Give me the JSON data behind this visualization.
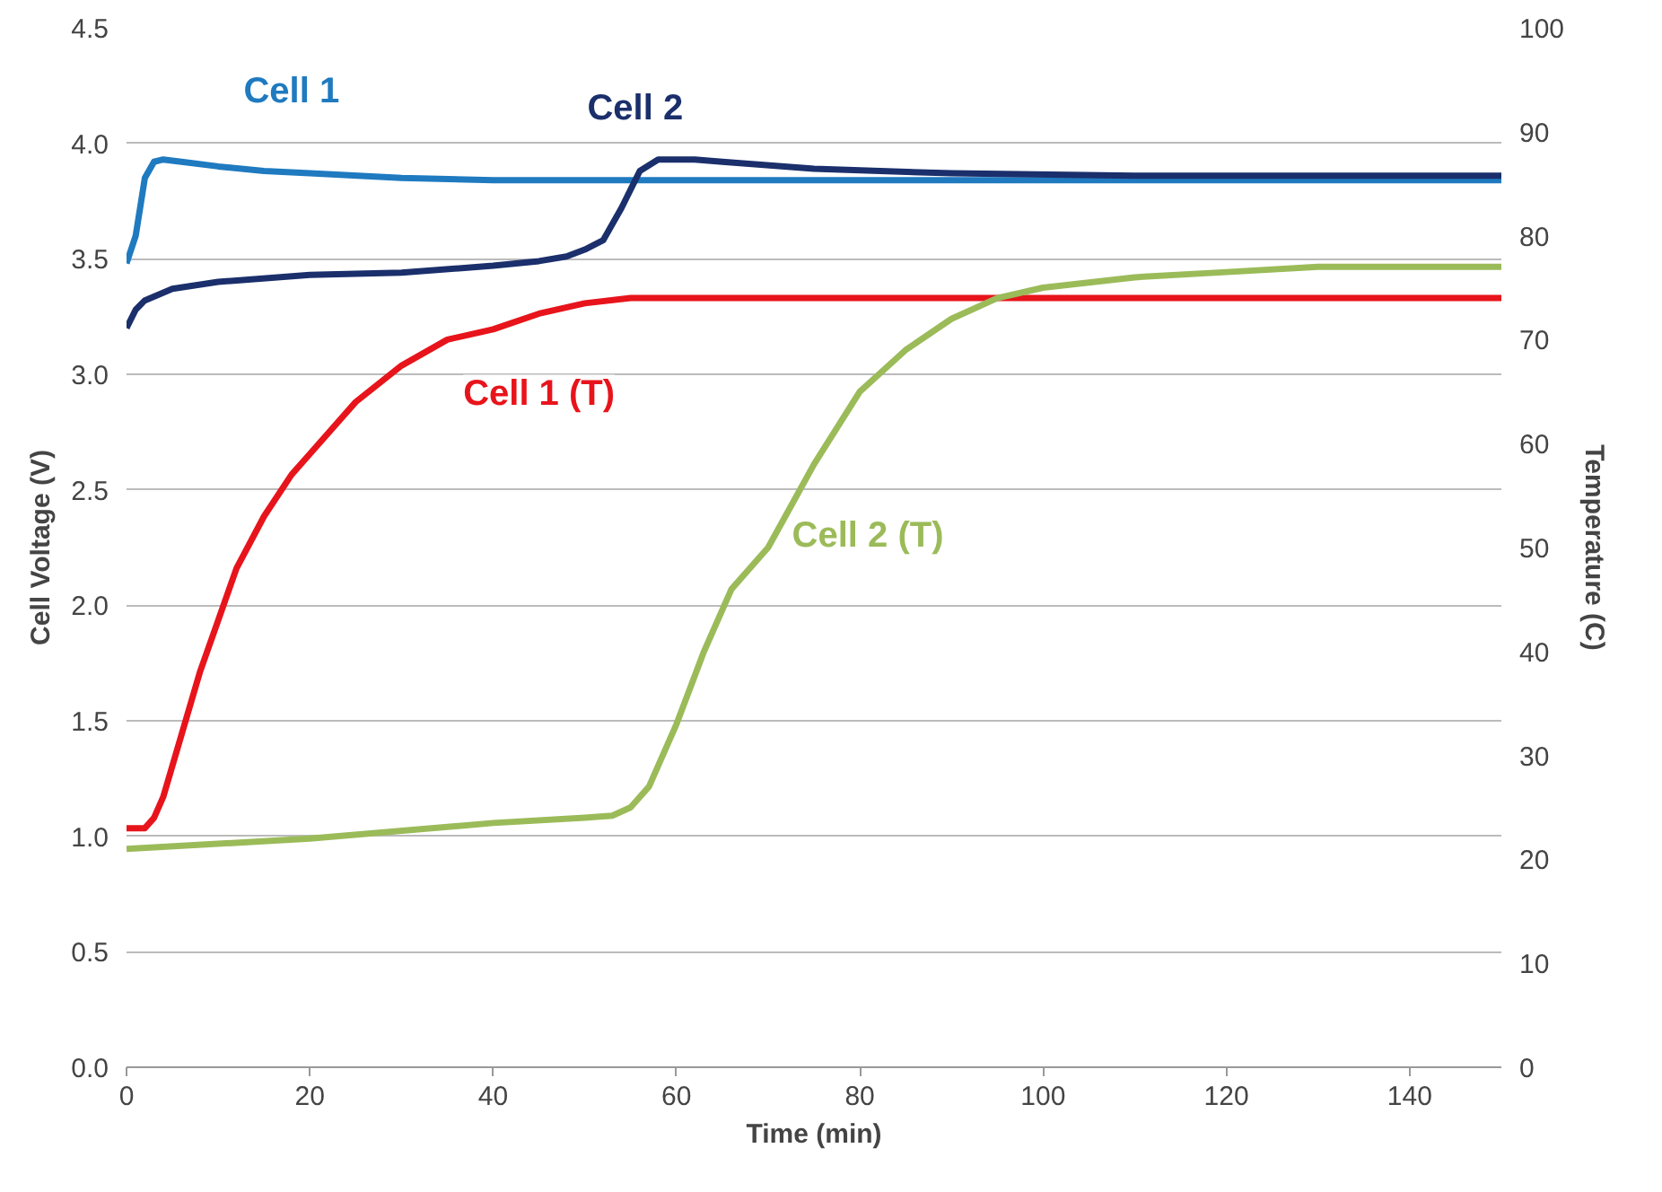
{
  "chart_data": {
    "type": "line",
    "xlabel": "Time (min)",
    "ylabel": "Cell Voltage (V)",
    "y2label": "Temperature (C)",
    "xlim": [
      0,
      150
    ],
    "xticks": [
      0,
      20,
      40,
      60,
      80,
      100,
      120,
      140
    ],
    "ylim": [
      0,
      4.5
    ],
    "yticks": [
      {
        "value": 0,
        "label": "0.0"
      },
      0.5,
      {
        "value": 1,
        "label": "1.0"
      },
      1.5,
      {
        "value": 2,
        "label": "2.0"
      },
      2.5,
      {
        "value": 3,
        "label": "3.0"
      },
      3.5,
      {
        "value": 4,
        "label": "4.0"
      },
      4.5
    ],
    "y2lim": [
      0,
      100
    ],
    "y2ticks": [
      0,
      10,
      20,
      30,
      40,
      50,
      60,
      70,
      80,
      90,
      100
    ],
    "grid": "y",
    "marker": "none",
    "line_style": "solid",
    "series": [
      {
        "name": "Cell 1",
        "color": "#1f7ac0",
        "x": [
          0,
          1,
          2,
          3,
          4,
          6,
          10,
          15,
          20,
          30,
          40,
          60,
          80,
          100,
          120,
          150
        ],
        "values": [
          3.48,
          3.6,
          3.85,
          3.92,
          3.93,
          3.92,
          3.9,
          3.88,
          3.87,
          3.85,
          3.84,
          3.84,
          3.84,
          3.84,
          3.84,
          3.84
        ]
      },
      {
        "name": "Cell 2",
        "color": "#1a2f6b",
        "x": [
          0,
          1,
          2,
          5,
          10,
          20,
          30,
          40,
          45,
          48,
          50,
          52,
          54,
          56,
          58,
          62,
          65,
          75,
          90,
          110,
          130,
          150
        ],
        "values": [
          3.2,
          3.28,
          3.32,
          3.37,
          3.4,
          3.43,
          3.44,
          3.47,
          3.49,
          3.51,
          3.54,
          3.58,
          3.72,
          3.88,
          3.93,
          3.93,
          3.92,
          3.89,
          3.87,
          3.86,
          3.86,
          3.86
        ]
      },
      {
        "name": "Cell 1 (T)",
        "color": "#e8141b",
        "axis": "y2",
        "x": [
          0,
          2,
          3,
          4,
          6,
          8,
          10,
          12,
          15,
          18,
          20,
          25,
          30,
          35,
          40,
          45,
          50,
          55,
          80,
          110,
          150
        ],
        "values": [
          23,
          23,
          24,
          26,
          32,
          38,
          43,
          48,
          53,
          57,
          59,
          64,
          67.5,
          70,
          71,
          72.5,
          73.5,
          74,
          74,
          74,
          74
        ]
      },
      {
        "name": "Cell 2 (T)",
        "color": "#9bbb59",
        "axis": "y2",
        "x": [
          0,
          20,
          40,
          50,
          53,
          55,
          57,
          60,
          63,
          66,
          70,
          75,
          80,
          85,
          90,
          95,
          100,
          110,
          120,
          130,
          150
        ],
        "values": [
          21,
          22,
          23.5,
          24,
          24.2,
          25,
          27,
          33,
          40,
          46,
          50,
          58,
          65,
          69,
          72,
          74,
          75,
          76,
          76.5,
          77,
          77
        ]
      }
    ]
  }
}
